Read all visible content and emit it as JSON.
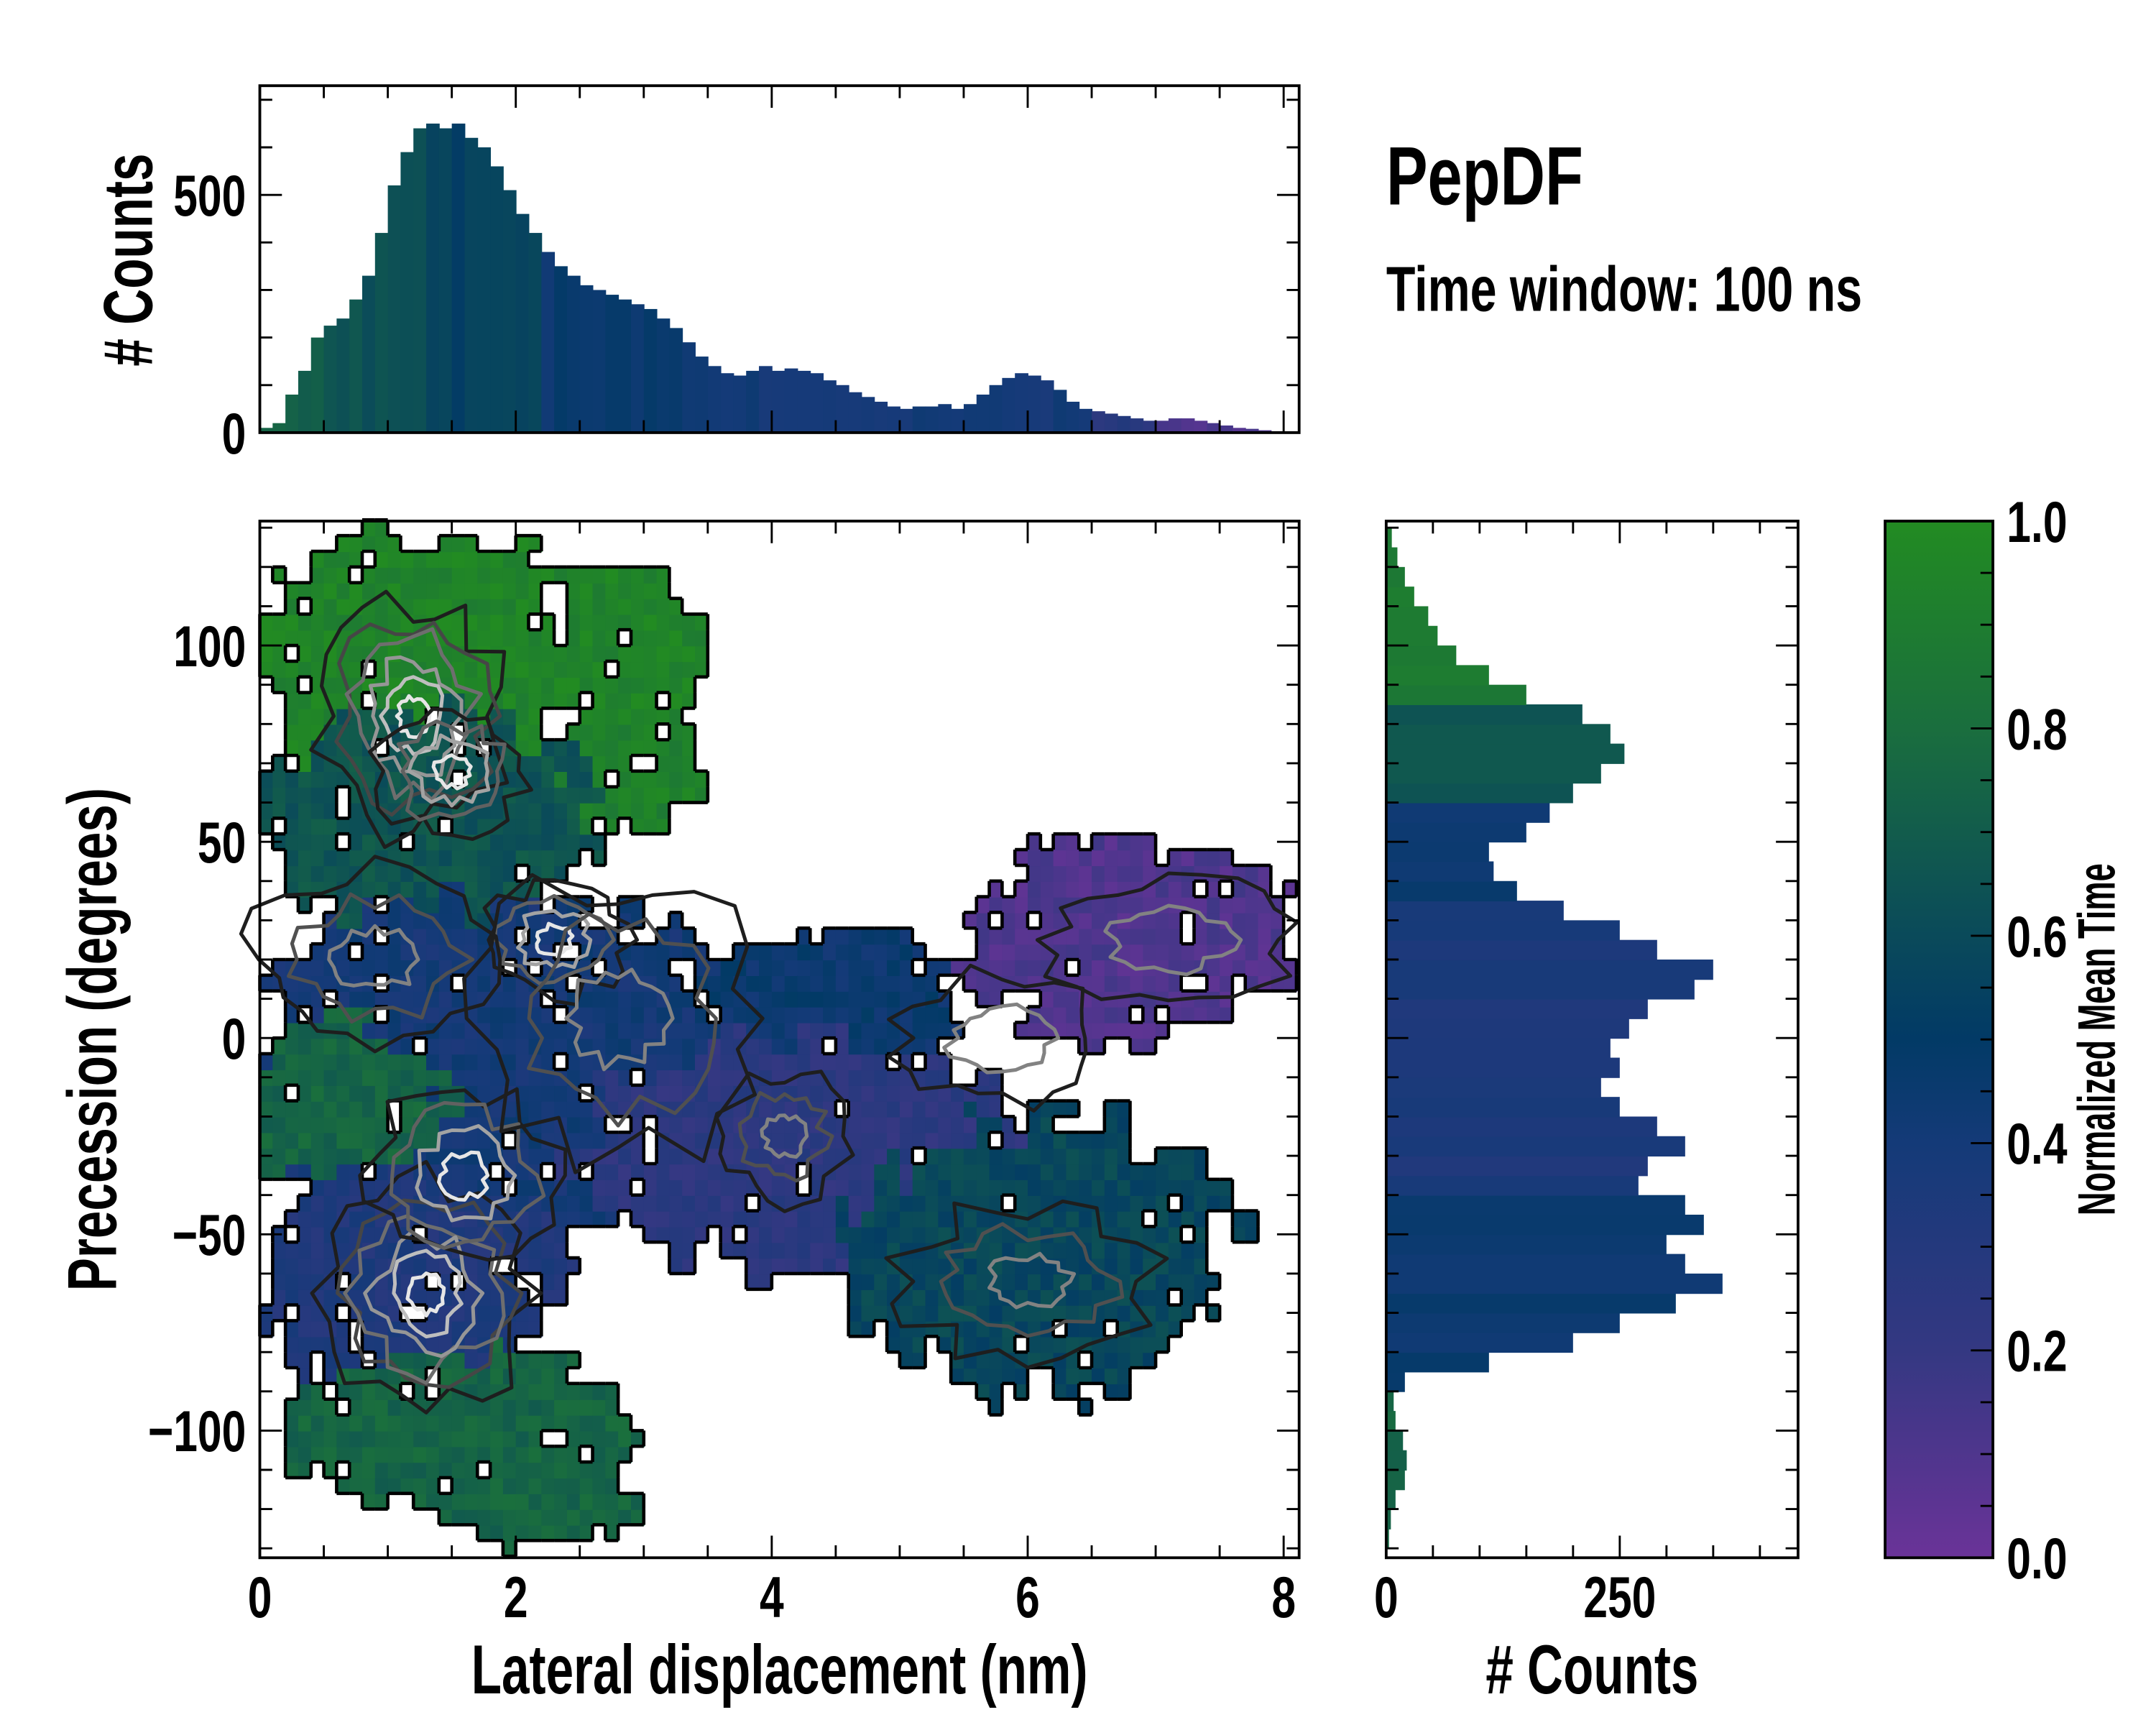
{
  "title": "PepDF",
  "subtitle": "Time window: 100 ns",
  "chart_data": [
    {
      "type": "heatmap",
      "name": "main",
      "xlabel": "Lateral displacement (nm)",
      "ylabel": "Precession (degrees)",
      "xlim": [
        0,
        8.12
      ],
      "ylim": [
        -132,
        132
      ],
      "xticks": [
        0,
        2,
        4,
        6,
        8
      ],
      "yticks": [
        -100,
        -50,
        0,
        50,
        100
      ],
      "cell": {
        "dx": 0.1,
        "dy": 4
      },
      "regions": [
        {
          "cx": 1.2,
          "cy": 95,
          "rx": 1.3,
          "ry": 38,
          "value": 0.95
        },
        {
          "cx": 2.9,
          "cy": 100,
          "rx": 0.6,
          "ry": 22,
          "value": 0.95
        },
        {
          "cx": 2.9,
          "cy": 68,
          "rx": 0.55,
          "ry": 16,
          "value": 0.93
        },
        {
          "cx": 1.3,
          "cy": 55,
          "rx": 1.35,
          "ry": 28,
          "value": 0.66
        },
        {
          "cx": 1.9,
          "cy": -5,
          "rx": 2.1,
          "ry": 42,
          "value": 0.4
        },
        {
          "cx": 4.4,
          "cy": 10,
          "rx": 1.0,
          "ry": 18,
          "value": 0.45
        },
        {
          "cx": 0.7,
          "cy": -18,
          "rx": 0.8,
          "ry": 22,
          "value": 0.75
        },
        {
          "cx": 4.2,
          "cy": -30,
          "rx": 1.8,
          "ry": 30,
          "value": 0.25
        },
        {
          "cx": 6.8,
          "cy": 25,
          "rx": 1.35,
          "ry": 26,
          "value": 0.1
        },
        {
          "cx": 6.1,
          "cy": -55,
          "rx": 1.5,
          "ry": 35,
          "value": 0.58
        },
        {
          "cx": 1.1,
          "cy": -62,
          "rx": 1.2,
          "ry": 28,
          "value": 0.33
        },
        {
          "cx": 1.6,
          "cy": -100,
          "rx": 1.35,
          "ry": 20,
          "value": 0.75
        },
        {
          "cx": 2.2,
          "cy": -112,
          "rx": 0.8,
          "ry": 20,
          "value": 0.75
        }
      ],
      "density_peaks": [
        {
          "x": 1.2,
          "y": 82,
          "sx": 0.45,
          "sy": 18,
          "levels": 6
        },
        {
          "x": 1.5,
          "y": 68,
          "sx": 0.35,
          "sy": 10,
          "levels": 4
        },
        {
          "x": 1.3,
          "y": -65,
          "sx": 0.5,
          "sy": 18,
          "levels": 6
        },
        {
          "x": 1.6,
          "y": -35,
          "sx": 0.45,
          "sy": 14,
          "levels": 4
        },
        {
          "x": 2.3,
          "y": 25,
          "sx": 0.35,
          "sy": 9,
          "levels": 4
        },
        {
          "x": 2.8,
          "y": 5,
          "sx": 0.7,
          "sy": 22,
          "levels": 3
        },
        {
          "x": 0.9,
          "y": 20,
          "sx": 0.6,
          "sy": 14,
          "levels": 3
        },
        {
          "x": 4.1,
          "y": -25,
          "sx": 0.3,
          "sy": 10,
          "levels": 3
        },
        {
          "x": 6.0,
          "y": -62,
          "sx": 0.6,
          "sy": 12,
          "levels": 3
        },
        {
          "x": 7.1,
          "y": 25,
          "sx": 0.6,
          "sy": 10,
          "levels": 2
        },
        {
          "x": 5.8,
          "y": 0,
          "sx": 0.5,
          "sy": 10,
          "levels": 2
        }
      ]
    },
    {
      "type": "bar",
      "name": "top_histogram",
      "ylabel": "# Counts",
      "bin_start": 0,
      "bin_width": 0.1,
      "ylim": [
        0,
        730
      ],
      "yticks": [
        0,
        500
      ],
      "values": [
        10,
        20,
        80,
        130,
        200,
        225,
        240,
        280,
        330,
        420,
        520,
        590,
        640,
        650,
        640,
        650,
        620,
        600,
        560,
        510,
        460,
        420,
        380,
        350,
        330,
        310,
        300,
        290,
        280,
        270,
        260,
        240,
        220,
        190,
        160,
        140,
        125,
        120,
        130,
        140,
        130,
        135,
        130,
        125,
        110,
        100,
        85,
        75,
        65,
        55,
        50,
        55,
        55,
        60,
        50,
        60,
        80,
        100,
        115,
        125,
        120,
        110,
        90,
        65,
        50,
        45,
        40,
        35,
        30,
        25,
        25,
        30,
        30,
        25,
        20,
        15,
        10,
        8,
        5,
        3
      ],
      "color_segments": [
        {
          "from": 0,
          "to": 0.5,
          "value": 0.72
        },
        {
          "from": 0.5,
          "to": 1.3,
          "value": 0.64
        },
        {
          "from": 1.3,
          "to": 2.2,
          "value": 0.55
        },
        {
          "from": 2.2,
          "to": 3.5,
          "value": 0.45
        },
        {
          "from": 3.5,
          "to": 6.5,
          "value": 0.4
        },
        {
          "from": 6.5,
          "to": 7.0,
          "value": 0.28
        },
        {
          "from": 7.0,
          "to": 8.0,
          "value": 0.1
        }
      ]
    },
    {
      "type": "bar",
      "name": "right_histogram",
      "orientation": "horizontal",
      "xlabel": "# Counts",
      "bin_start": -130,
      "bin_width": 5,
      "xlim": [
        0,
        441
      ],
      "xticks": [
        0,
        250
      ],
      "values": [
        3,
        5,
        10,
        20,
        22,
        18,
        10,
        8,
        20,
        110,
        200,
        250,
        310,
        360,
        320,
        300,
        340,
        320,
        270,
        280,
        320,
        290,
        250,
        230,
        250,
        240,
        260,
        280,
        330,
        350,
        290,
        250,
        190,
        140,
        115,
        110,
        150,
        175,
        200,
        230,
        255,
        240,
        210,
        150,
        110,
        75,
        55,
        45,
        30,
        20,
        12,
        6
      ],
      "color_segments": [
        {
          "from": -130,
          "to": -88,
          "value": 0.75
        },
        {
          "from": -88,
          "to": -38,
          "value": 0.45
        },
        {
          "from": -38,
          "to": 33,
          "value": 0.35
        },
        {
          "from": 33,
          "to": 58,
          "value": 0.45
        },
        {
          "from": 58,
          "to": 83,
          "value": 0.65
        },
        {
          "from": 83,
          "to": 130,
          "value": 0.88
        }
      ]
    },
    {
      "type": "colorbar",
      "name": "colorbar",
      "label": "Normalized Mean Time",
      "range": [
        0,
        1
      ],
      "ticks": [
        "0.0",
        "0.2",
        "0.4",
        "0.6",
        "0.8",
        "1.0"
      ],
      "colormap": [
        {
          "v": 0.0,
          "c": "#6a3398"
        },
        {
          "v": 0.2,
          "c": "#343882"
        },
        {
          "v": 0.4,
          "c": "#143a78"
        },
        {
          "v": 0.5,
          "c": "#023a66"
        },
        {
          "v": 0.6,
          "c": "#0a4a5a"
        },
        {
          "v": 0.8,
          "c": "#1a6e3e"
        },
        {
          "v": 1.0,
          "c": "#228b22"
        }
      ]
    }
  ]
}
